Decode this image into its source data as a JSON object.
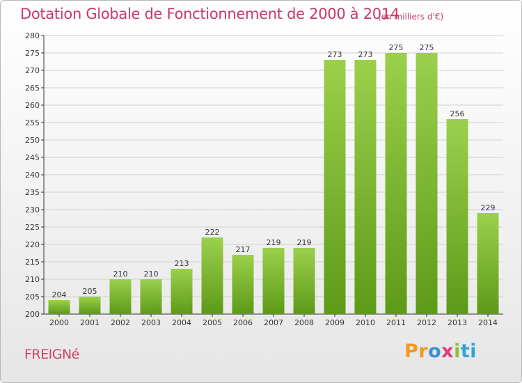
{
  "title": "Dotation Globale de Fonctionnement de 2000 à 2014",
  "subtitle": "(en milliers d'€)",
  "commune": "FREIGNé",
  "logo": {
    "p1": "Pr",
    "p2": "o",
    "p3": "x",
    "p4": "i",
    "p5": "ti"
  },
  "colors": {
    "title": "#c8386a",
    "bar_light": "#9bd04c",
    "bar_dark": "#5d9a18",
    "axis": "#333333",
    "grid": "#d0d0d0"
  },
  "chart_data": {
    "type": "bar",
    "title": "Dotation Globale de Fonctionnement de 2000 à 2014",
    "subtitle": "(en milliers d'€)",
    "categories": [
      "2000",
      "2001",
      "2002",
      "2003",
      "2004",
      "2005",
      "2006",
      "2007",
      "2008",
      "2009",
      "2010",
      "2011",
      "2012",
      "2013",
      "2014"
    ],
    "values": [
      204,
      205,
      210,
      210,
      213,
      222,
      217,
      219,
      219,
      273,
      273,
      275,
      275,
      256,
      229
    ],
    "ylim": [
      200,
      280
    ],
    "ytick_step": 5,
    "xlabel": "",
    "ylabel": "",
    "grid": true,
    "data_labels": true
  }
}
